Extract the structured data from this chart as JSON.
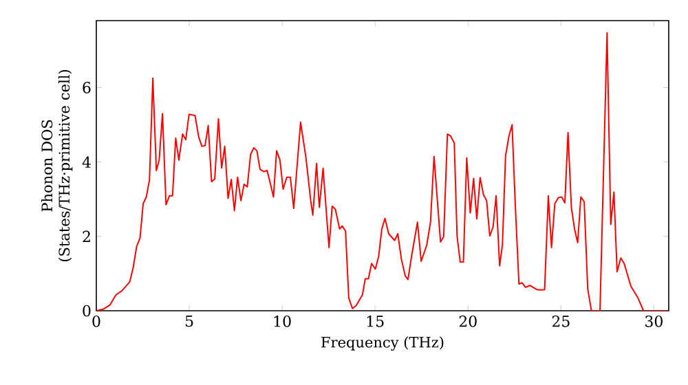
{
  "chart_data": {
    "type": "line",
    "xlabel": "Frequency (THz)",
    "ylabel": "Phonon DOS (States/THz·primitive cell)",
    "xlim": [
      0,
      30.8
    ],
    "ylim": [
      0,
      7.8
    ],
    "xticks": [
      0,
      5,
      10,
      15,
      20,
      25,
      30
    ],
    "yticks": [
      0,
      2,
      4,
      6
    ],
    "marker": "none",
    "line_style": "solid",
    "series": [
      {
        "color": "#ff0000",
        "x": [
          0,
          0.37,
          0.74,
          1.06,
          1.36,
          1.8,
          1.98,
          2.17,
          2.35,
          2.52,
          2.69,
          2.86,
          3.04,
          3.23,
          3.38,
          3.56,
          3.75,
          3.93,
          4.1,
          4.27,
          4.44,
          4.64,
          4.81,
          4.99,
          5.31,
          5.51,
          5.68,
          5.85,
          6.02,
          6.2,
          6.37,
          6.57,
          6.74,
          6.91,
          7.09,
          7.26,
          7.43,
          7.6,
          7.78,
          7.95,
          8.12,
          8.3,
          8.47,
          8.64,
          8.81,
          9.01,
          9.19,
          9.36,
          9.53,
          9.7,
          9.88,
          10.05,
          10.25,
          10.44,
          10.62,
          10.99,
          11.28,
          11.54,
          11.65,
          11.85,
          12.0,
          12.2,
          12.52,
          12.69,
          12.86,
          13.09,
          13.23,
          13.41,
          13.58,
          13.78,
          13.98,
          14.32,
          14.47,
          14.64,
          14.81,
          15.01,
          15.19,
          15.36,
          15.53,
          15.73,
          16.05,
          16.22,
          16.42,
          16.62,
          16.77,
          16.96,
          17.28,
          17.48,
          17.78,
          17.98,
          18.17,
          18.52,
          18.69,
          18.89,
          19.06,
          19.26,
          19.41,
          19.58,
          19.75,
          19.93,
          20.12,
          20.3,
          20.47,
          20.65,
          20.83,
          21.0,
          21.17,
          21.35,
          21.51,
          21.7,
          21.85,
          22.02,
          22.2,
          22.37,
          22.54,
          22.74,
          22.91,
          23.09,
          23.33,
          23.7,
          23.95,
          24.12,
          24.32,
          24.49,
          24.67,
          24.86,
          25.04,
          25.21,
          25.38,
          25.56,
          25.73,
          25.9,
          26.07,
          26.25,
          26.44,
          26.64,
          27.1,
          27.48,
          27.68,
          27.85,
          28.02,
          28.22,
          28.4,
          28.77,
          29.14,
          29.44,
          30.75
        ],
        "values": [
          0,
          0.04,
          0.16,
          0.43,
          0.53,
          0.78,
          1.15,
          1.73,
          1.95,
          2.88,
          3.06,
          3.52,
          6.25,
          3.77,
          4.05,
          5.3,
          2.85,
          3.09,
          3.09,
          4.64,
          4.05,
          4.75,
          4.6,
          5.28,
          5.25,
          4.67,
          4.42,
          4.44,
          4.98,
          3.47,
          3.54,
          5.16,
          3.84,
          4.42,
          3.02,
          3.53,
          2.69,
          3.59,
          2.96,
          3.4,
          3.33,
          4.2,
          4.38,
          4.3,
          3.8,
          3.74,
          3.77,
          3.43,
          3.06,
          4.3,
          4.05,
          3.27,
          3.59,
          3.59,
          2.75,
          5.07,
          4.11,
          2.94,
          2.57,
          3.96,
          2.78,
          3.83,
          1.7,
          2.81,
          2.73,
          2.2,
          2.28,
          2.14,
          0.35,
          0.06,
          0.14,
          0.43,
          0.86,
          0.86,
          1.27,
          1.12,
          1.46,
          2.2,
          2.48,
          2.07,
          1.89,
          2.07,
          1.37,
          0.94,
          0.84,
          1.46,
          2.38,
          1.33,
          1.77,
          2.38,
          4.15,
          1.85,
          1.99,
          4.75,
          4.7,
          4.51,
          2.01,
          1.31,
          1.31,
          4.11,
          2.63,
          3.56,
          2.47,
          3.58,
          3.12,
          2.96,
          2.01,
          2.26,
          3.09,
          1.21,
          1.77,
          4.17,
          4.69,
          5.0,
          2.88,
          0.72,
          0.75,
          0.63,
          0.68,
          0.57,
          0.56,
          0.57,
          3.09,
          1.7,
          2.88,
          3.04,
          3.06,
          2.9,
          4.79,
          2.78,
          2.2,
          1.83,
          3.06,
          2.93,
          0.59,
          0,
          0,
          7.47,
          2.32,
          3.19,
          1.05,
          1.42,
          1.27,
          0.65,
          0.35,
          0,
          0
        ]
      }
    ]
  }
}
